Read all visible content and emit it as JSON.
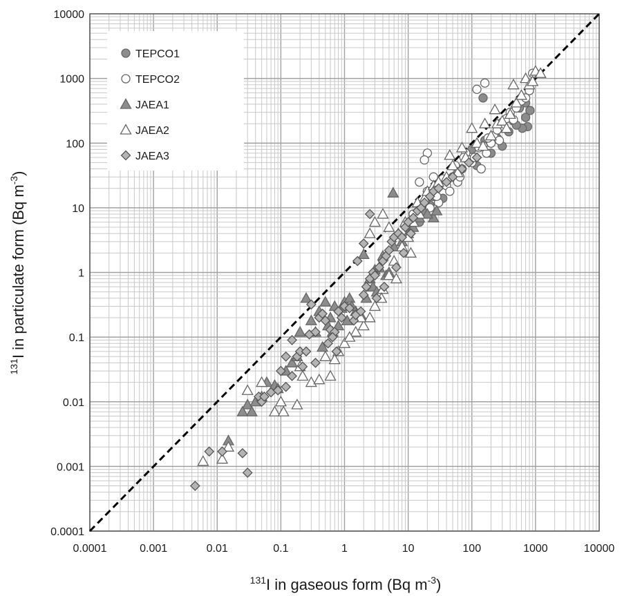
{
  "chart_data": {
    "type": "scatter",
    "x_scale": "log",
    "y_scale": "log",
    "xlim": [
      0.0001,
      10000
    ],
    "ylim": [
      0.0001,
      10000
    ],
    "grid": true,
    "legend_position": "top-left",
    "x_tick_labels": [
      "0.0001",
      "0.001",
      "0.01",
      "0.1",
      "1",
      "10",
      "100",
      "1000",
      "10000"
    ],
    "y_tick_labels": [
      "0.0001",
      "0.001",
      "0.01",
      "0.1",
      "1",
      "10",
      "100",
      "1000",
      "10000"
    ],
    "xlabel": {
      "sup": "131",
      "pre": "I in gaseous form (Bq m",
      "exp": "-3",
      "post": ")"
    },
    "ylabel": {
      "sup": "131",
      "pre": "I in particulate form (Bq m",
      "exp": "-3",
      "post": ")"
    },
    "reference_line": {
      "style": "dashed",
      "color": "#000000",
      "points": [
        [
          0.0001,
          0.0001
        ],
        [
          10000,
          10000
        ]
      ]
    },
    "series": [
      {
        "name": "TEPCO1",
        "marker": "circle",
        "fill": "#8c8c8c",
        "stroke": "#666666",
        "points": [
          [
            150,
            500
          ],
          [
            700,
            420
          ],
          [
            820,
            320
          ],
          [
            750,
            180
          ],
          [
            620,
            170
          ],
          [
            560,
            350
          ],
          [
            450,
            220
          ],
          [
            380,
            150
          ],
          [
            250,
            120
          ],
          [
            300,
            90
          ],
          [
            200,
            70
          ],
          [
            120,
            45
          ],
          [
            90,
            55
          ],
          [
            60,
            35
          ],
          [
            50,
            30
          ],
          [
            25,
            15
          ],
          [
            30,
            12
          ],
          [
            35,
            14
          ],
          [
            18,
            9
          ],
          [
            15,
            6
          ],
          [
            22,
            11
          ],
          [
            100,
            80
          ],
          [
            160,
            110
          ],
          [
            400,
            260
          ],
          [
            500,
            190
          ],
          [
            700,
            250
          ],
          [
            1000,
            1200
          ]
        ]
      },
      {
        "name": "TEPCO2",
        "marker": "circle",
        "fill": "#ffffff",
        "stroke": "#666666",
        "points": [
          [
            160,
            850
          ],
          [
            120,
            680
          ],
          [
            20,
            70
          ],
          [
            18,
            55
          ],
          [
            15,
            25
          ],
          [
            25,
            30
          ],
          [
            40,
            22
          ],
          [
            45,
            18
          ],
          [
            60,
            25
          ],
          [
            70,
            40
          ],
          [
            80,
            70
          ],
          [
            90,
            55
          ],
          [
            100,
            50
          ],
          [
            110,
            60
          ],
          [
            130,
            85
          ],
          [
            150,
            90
          ],
          [
            170,
            70
          ],
          [
            200,
            100
          ],
          [
            220,
            130
          ],
          [
            250,
            160
          ],
          [
            300,
            210
          ],
          [
            350,
            240
          ],
          [
            400,
            300
          ],
          [
            500,
            350
          ],
          [
            600,
            450
          ],
          [
            800,
            650
          ],
          [
            900,
            1200
          ],
          [
            30,
            12
          ],
          [
            28,
            15
          ],
          [
            22,
            10
          ],
          [
            12,
            8
          ],
          [
            35,
            28
          ],
          [
            55,
            45
          ],
          [
            65,
            30
          ],
          [
            75,
            60
          ],
          [
            140,
            40
          ],
          [
            180,
            120
          ],
          [
            270,
            110
          ],
          [
            320,
            180
          ],
          [
            450,
            230
          ],
          [
            700,
            500
          ],
          [
            20,
            18
          ]
        ]
      },
      {
        "name": "JAEA1",
        "marker": "triangle",
        "fill": "#8c8c8c",
        "stroke": "#666666",
        "points": [
          [
            5.8,
            17
          ],
          [
            25,
            7
          ],
          [
            28,
            9
          ],
          [
            0.03,
            0.009
          ],
          [
            0.025,
            0.007
          ],
          [
            0.04,
            0.01
          ],
          [
            0.035,
            0.007
          ],
          [
            0.06,
            0.02
          ],
          [
            0.08,
            0.018
          ],
          [
            0.09,
            0.016
          ],
          [
            0.015,
            0.0025
          ],
          [
            0.3,
            0.18
          ],
          [
            0.2,
            0.12
          ],
          [
            0.4,
            0.25
          ],
          [
            0.5,
            0.35
          ],
          [
            0.6,
            0.2
          ],
          [
            0.7,
            0.3
          ],
          [
            0.8,
            0.15
          ],
          [
            1,
            0.35
          ],
          [
            1.2,
            0.4
          ],
          [
            1.5,
            0.25
          ],
          [
            2,
            1.9
          ],
          [
            2.5,
            0.8
          ],
          [
            3,
            1.1
          ],
          [
            3.5,
            1.2
          ],
          [
            4,
            1.8
          ],
          [
            0.25,
            0.4
          ],
          [
            0.35,
            0.12
          ],
          [
            0.45,
            0.07
          ],
          [
            0.55,
            0.15
          ],
          [
            0.65,
            0.12
          ],
          [
            0.9,
            0.28
          ],
          [
            1.1,
            0.18
          ],
          [
            1.3,
            0.3
          ],
          [
            1.8,
            0.22
          ],
          [
            2.2,
            0.4
          ],
          [
            2.8,
            0.6
          ],
          [
            3.2,
            0.5
          ],
          [
            4.5,
            0.9
          ],
          [
            5,
            1
          ],
          [
            6,
            2.5
          ],
          [
            8,
            3
          ],
          [
            10,
            4
          ],
          [
            12,
            5
          ],
          [
            15,
            7
          ],
          [
            20,
            8
          ],
          [
            0.12,
            0.03
          ],
          [
            0.15,
            0.04
          ],
          [
            0.18,
            0.05
          ],
          [
            0.05,
            0.012
          ]
        ]
      },
      {
        "name": "JAEA2",
        "marker": "triangle",
        "fill": "#ffffff",
        "stroke": "#666666",
        "points": [
          [
            0.006,
            0.0012
          ],
          [
            0.012,
            0.0013
          ],
          [
            0.015,
            0.002
          ],
          [
            0.08,
            0.007
          ],
          [
            0.11,
            0.007
          ],
          [
            0.1,
            0.01
          ],
          [
            0.18,
            0.009
          ],
          [
            0.22,
            0.025
          ],
          [
            0.3,
            0.02
          ],
          [
            0.4,
            0.022
          ],
          [
            0.6,
            0.025
          ],
          [
            0.7,
            0.045
          ],
          [
            0.8,
            0.06
          ],
          [
            1,
            0.08
          ],
          [
            1.5,
            0.12
          ],
          [
            2,
            0.15
          ],
          [
            2.5,
            0.2
          ],
          [
            3,
            0.3
          ],
          [
            3.5,
            0.45
          ],
          [
            4,
            0.55
          ],
          [
            5,
            0.9
          ],
          [
            6,
            1.5
          ],
          [
            8,
            2.5
          ],
          [
            10,
            3.5
          ],
          [
            11,
            2
          ],
          [
            12,
            6
          ],
          [
            15,
            8
          ],
          [
            18,
            14
          ],
          [
            20,
            18
          ],
          [
            25,
            22
          ],
          [
            30,
            25
          ],
          [
            40,
            30
          ],
          [
            50,
            45
          ],
          [
            60,
            35
          ],
          [
            80,
            60
          ],
          [
            100,
            170
          ],
          [
            120,
            100
          ],
          [
            150,
            90
          ],
          [
            200,
            130
          ],
          [
            250,
            200
          ],
          [
            300,
            220
          ],
          [
            350,
            170
          ],
          [
            400,
            280
          ],
          [
            450,
            800
          ],
          [
            500,
            420
          ],
          [
            600,
            550
          ],
          [
            700,
            1000
          ],
          [
            800,
            800
          ],
          [
            900,
            900
          ],
          [
            1000,
            1300
          ],
          [
            1200,
            1200
          ],
          [
            4,
            8
          ],
          [
            3,
            6
          ],
          [
            2.5,
            4
          ],
          [
            5,
            5
          ],
          [
            7,
            4
          ],
          [
            9,
            6
          ],
          [
            14,
            12
          ],
          [
            45,
            65
          ],
          [
            70,
            85
          ],
          [
            160,
            200
          ],
          [
            230,
            330
          ],
          [
            0.05,
            0.02
          ],
          [
            0.03,
            0.015
          ],
          [
            0.2,
            0.035
          ],
          [
            0.5,
            0.05
          ],
          [
            1.2,
            0.1
          ],
          [
            1.8,
            0.2
          ],
          [
            3.8,
            0.4
          ],
          [
            6.5,
            0.8
          ]
        ]
      },
      {
        "name": "JAEA3",
        "marker": "diamond",
        "fill": "#b4b4b4",
        "stroke": "#555555",
        "points": [
          [
            0.0045,
            0.0005
          ],
          [
            0.0075,
            0.0017
          ],
          [
            0.012,
            0.0017
          ],
          [
            0.025,
            0.0016
          ],
          [
            0.03,
            0.0008
          ],
          [
            0.045,
            0.012
          ],
          [
            0.05,
            0.01
          ],
          [
            0.055,
            0.012
          ],
          [
            0.07,
            0.014
          ],
          [
            0.09,
            0.015
          ],
          [
            0.12,
            0.017
          ],
          [
            0.15,
            0.025
          ],
          [
            0.18,
            0.05
          ],
          [
            0.2,
            0.06
          ],
          [
            0.22,
            0.035
          ],
          [
            0.25,
            0.06
          ],
          [
            0.28,
            0.11
          ],
          [
            0.3,
            0.32
          ],
          [
            0.35,
            0.12
          ],
          [
            0.4,
            0.2
          ],
          [
            0.45,
            0.23
          ],
          [
            0.5,
            0.18
          ],
          [
            0.6,
            0.13
          ],
          [
            0.7,
            0.12
          ],
          [
            0.75,
            0.06
          ],
          [
            0.8,
            0.25
          ],
          [
            0.9,
            0.2
          ],
          [
            1,
            0.3
          ],
          [
            1.2,
            0.28
          ],
          [
            1.4,
            0.18
          ],
          [
            1.5,
            0.22
          ],
          [
            1.8,
            0.25
          ],
          [
            2,
            0.45
          ],
          [
            2.2,
            0.6
          ],
          [
            2.5,
            0.8
          ],
          [
            2.8,
            1
          ],
          [
            3,
            0.9
          ],
          [
            3.5,
            1.2
          ],
          [
            4,
            1.5
          ],
          [
            4.5,
            1.8
          ],
          [
            5,
            2.2
          ],
          [
            5.5,
            3
          ],
          [
            6,
            3.5
          ],
          [
            7,
            4
          ],
          [
            8,
            3.5
          ],
          [
            9,
            5
          ],
          [
            10,
            6
          ],
          [
            11,
            4
          ],
          [
            12,
            7
          ],
          [
            14,
            9
          ],
          [
            16,
            10
          ],
          [
            18,
            12
          ],
          [
            22,
            15
          ],
          [
            25,
            18
          ],
          [
            30,
            20
          ],
          [
            40,
            25
          ],
          [
            50,
            30
          ],
          [
            70,
            40
          ],
          [
            90,
            50
          ],
          [
            120,
            60
          ],
          [
            2.5,
            8
          ],
          [
            2,
            2.8
          ],
          [
            1.6,
            1.5
          ],
          [
            0.15,
            0.09
          ],
          [
            0.12,
            0.05
          ],
          [
            0.35,
            0.04
          ],
          [
            0.55,
            0.08
          ],
          [
            0.65,
            0.1
          ],
          [
            3.2,
            0.4
          ],
          [
            4.2,
            0.6
          ],
          [
            6.5,
            1.2
          ],
          [
            8.5,
            2
          ],
          [
            0.1,
            0.03
          ]
        ]
      }
    ]
  }
}
